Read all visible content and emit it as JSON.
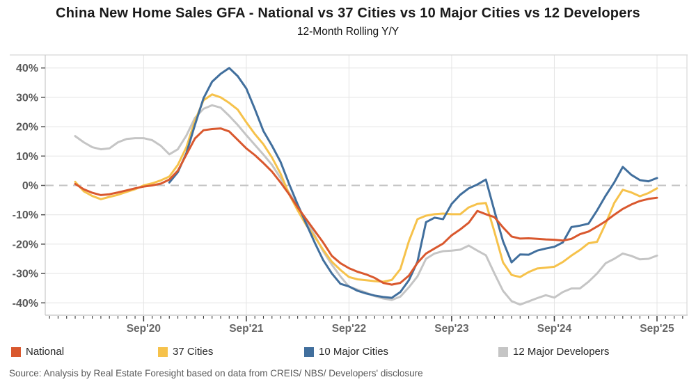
{
  "source_note": "Source: Analysis by Real Estate Foresight based on data from CREIS/ NBS/ Developers' disclosure",
  "chart_data": {
    "type": "line",
    "title": "China New Home Sales GFA - National vs 37 Cities vs 10 Major Cities vs 12 Developers",
    "subtitle": "12-Month Rolling Y/Y",
    "grid": true,
    "legend_position": "bottom",
    "zero_line_dashed": true,
    "x_axis": {
      "unit": "month",
      "first_data_month": "2020-01",
      "tick_labels": [
        "Sep'20",
        "Sep'21",
        "Sep'22",
        "Sep'23",
        "Sep'24",
        "Sep'25"
      ],
      "tick_month_indices": [
        8,
        20,
        32,
        44,
        56,
        68
      ],
      "minor_tick_every_month": true
    },
    "y_axis": {
      "unit": "% y/y",
      "tick_labels": [
        "40%",
        "30%",
        "20%",
        "10%",
        "0%",
        "-10%",
        "-20%",
        "-30%",
        "-40%"
      ],
      "tick_values": [
        40,
        30,
        20,
        10,
        0,
        -10,
        -20,
        -30,
        -40
      ],
      "ylim": [
        -44,
        44.5
      ]
    },
    "colors": {
      "national": "#D9582E",
      "cities37": "#F6C24B",
      "major10": "#416F9D",
      "developers12": "#C5C5C5",
      "gridline": "#e4e4e4",
      "zero_line": "#c2c2c2",
      "axis_text": "#595959"
    },
    "series": [
      {
        "name": "National",
        "color": "#D9582E",
        "start_month_index": 0,
        "values": [
          0.5,
          -1.3,
          -2.5,
          -3.3,
          -3.0,
          -2.4,
          -1.7,
          -1.0,
          -0.4,
          0.0,
          0.6,
          2.0,
          5.0,
          10.5,
          16.0,
          18.8,
          19.2,
          19.4,
          18.4,
          15.5,
          12.6,
          10.3,
          7.6,
          4.7,
          1.0,
          -3.0,
          -7.5,
          -11.5,
          -15.5,
          -19.5,
          -24.0,
          -26.5,
          -28.2,
          -29.4,
          -30.3,
          -31.5,
          -33.2,
          -33.8,
          -33.2,
          -30.7,
          -26.4,
          -23.2,
          -21.5,
          -19.8,
          -17.0,
          -15.0,
          -12.7,
          -8.7,
          -9.8,
          -10.8,
          -14.3,
          -17.4,
          -18.1,
          -18.0,
          -18.2,
          -18.4,
          -18.5,
          -18.8,
          -18.2,
          -16.6,
          -15.7,
          -14.0,
          -12.2,
          -10.0,
          -8.0,
          -6.5,
          -5.3,
          -4.6,
          -4.2
        ]
      },
      {
        "name": "37 Cities",
        "color": "#F6C24B",
        "start_month_index": 0,
        "values": [
          1.2,
          -2.0,
          -3.6,
          -4.7,
          -3.9,
          -3.2,
          -2.2,
          -1.3,
          0.0,
          0.7,
          1.7,
          3.0,
          7.0,
          13.0,
          22.0,
          29.0,
          31.0,
          30.0,
          28.1,
          25.8,
          21.5,
          17.5,
          14.0,
          9.5,
          4.0,
          -3.0,
          -8.5,
          -13.5,
          -17.5,
          -22.0,
          -26.0,
          -28.8,
          -31.2,
          -32.0,
          -32.3,
          -32.6,
          -32.8,
          -32.2,
          -28.5,
          -19.0,
          -11.5,
          -10.3,
          -9.8,
          -9.6,
          -9.8,
          -9.8,
          -7.5,
          -6.3,
          -6.0,
          -15.8,
          -26.2,
          -30.5,
          -31.2,
          -29.5,
          -28.3,
          -28.0,
          -27.7,
          -26.1,
          -23.9,
          -22.0,
          -19.7,
          -19.2,
          -13.0,
          -6.0,
          -1.5,
          -2.4,
          -3.7,
          -2.6,
          -1.0
        ]
      },
      {
        "name": "10 Major Cities",
        "color": "#416F9D",
        "start_month_index": 11,
        "values": [
          1.0,
          4.5,
          11.0,
          20.6,
          29.7,
          35.3,
          38.0,
          40.0,
          37.2,
          33.0,
          26.0,
          18.5,
          13.5,
          8.0,
          0.5,
          -6.5,
          -13.0,
          -19.5,
          -25.5,
          -30.0,
          -33.5,
          -34.4,
          -35.9,
          -36.8,
          -37.5,
          -38.0,
          -38.3,
          -36.3,
          -32.3,
          -26.0,
          -12.5,
          -11.0,
          -11.5,
          -6.3,
          -3.2,
          -1.0,
          0.3,
          2.0,
          -8.7,
          -19.0,
          -26.2,
          -23.5,
          -23.6,
          -22.2,
          -21.5,
          -20.9,
          -19.4,
          -14.2,
          -13.7,
          -13.0,
          -8.5,
          -3.5,
          1.0,
          6.3,
          3.6,
          1.8,
          1.4,
          2.5
        ]
      },
      {
        "name": "12 Major Developers",
        "color": "#C5C5C5",
        "start_month_index": 0,
        "values": [
          16.8,
          14.7,
          13.0,
          12.3,
          12.6,
          14.7,
          15.8,
          16.1,
          16.1,
          15.4,
          13.5,
          10.6,
          12.3,
          17.0,
          23.0,
          26.1,
          27.3,
          26.5,
          23.7,
          20.6,
          17.1,
          13.8,
          10.5,
          7.0,
          2.5,
          -2.5,
          -7.0,
          -12.0,
          -17.0,
          -22.5,
          -27.0,
          -31.0,
          -34.5,
          -35.5,
          -36.5,
          -37.7,
          -38.5,
          -39.0,
          -37.9,
          -34.7,
          -31.0,
          -25.0,
          -23.2,
          -22.4,
          -22.2,
          -21.9,
          -20.5,
          -22.2,
          -23.8,
          -30.0,
          -35.9,
          -39.4,
          -40.6,
          -39.5,
          -38.4,
          -37.4,
          -38.2,
          -36.3,
          -35.1,
          -35.1,
          -32.8,
          -30.0,
          -26.5,
          -25.0,
          -23.2,
          -24.0,
          -25.2,
          -25.0,
          -23.9
        ]
      }
    ]
  }
}
